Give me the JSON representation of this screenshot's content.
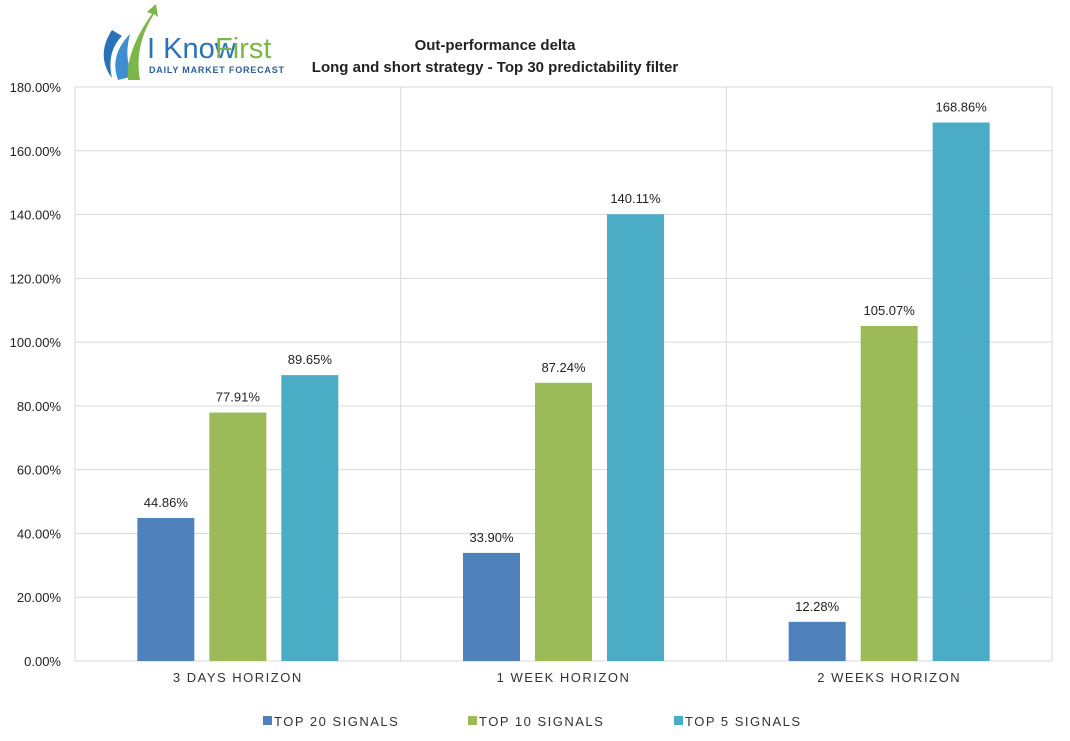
{
  "logo": {
    "brand_main": "I Know",
    "brand_accent": "First",
    "tagline": "Daily Market Forecast",
    "colors": {
      "blue": "#2a73b8",
      "green": "#7ab648"
    }
  },
  "chart_data": {
    "type": "bar",
    "title": "Out-performance delta",
    "subtitle": "Long and short strategy - Top 30 predictability filter",
    "categories": [
      "3 DAYS HORIZON",
      "1 WEEK HORIZON",
      "2 WEEKS HORIZON"
    ],
    "series": [
      {
        "name": "TOP 20 SIGNALS",
        "color": "#4f81bd",
        "values": [
          44.86,
          33.9,
          12.28
        ],
        "labels": [
          "44.86%",
          "33.90%",
          "12.28%"
        ]
      },
      {
        "name": "TOP 10 SIGNALS",
        "color": "#9bbb59",
        "values": [
          77.91,
          87.24,
          105.07
        ],
        "labels": [
          "77.91%",
          "87.24%",
          "105.07%"
        ]
      },
      {
        "name": "TOP 5 SIGNALS",
        "color": "#4bacc6",
        "values": [
          89.65,
          140.11,
          168.86
        ],
        "labels": [
          "89.65%",
          "140.11%",
          "168.86%"
        ]
      }
    ],
    "y_ticks": [
      "0.00%",
      "20.00%",
      "40.00%",
      "60.00%",
      "80.00%",
      "100.00%",
      "120.00%",
      "140.00%",
      "160.00%",
      "180.00%"
    ],
    "ylim": [
      0,
      180
    ],
    "grid": true,
    "legend_position": "bottom",
    "xlabel": "",
    "ylabel": ""
  }
}
